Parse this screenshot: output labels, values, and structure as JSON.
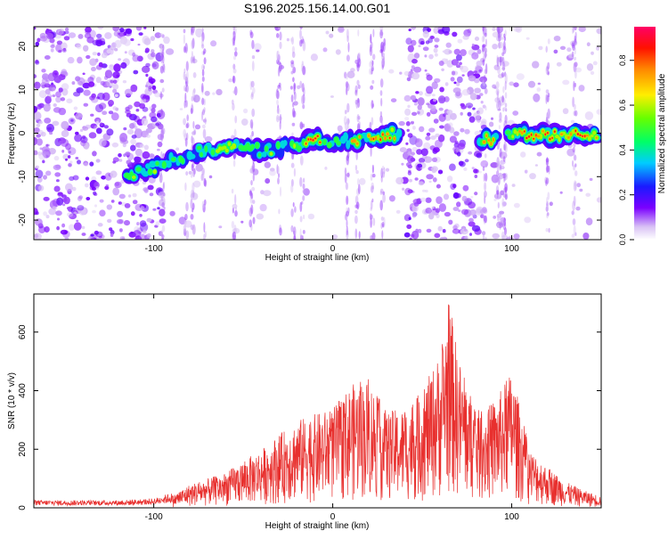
{
  "title": "S196.2025.156.14.00.G01",
  "colors": {
    "snr_line": "#e8302e",
    "axis": "#000000"
  },
  "chart_data": [
    {
      "type": "heatmap",
      "xlabel": "Height of straight line (km)",
      "ylabel": "Frequency (Hz)",
      "xlim": [
        -167,
        150
      ],
      "ylim": [
        -24.5,
        24.5
      ],
      "x_ticks": [
        -100,
        0,
        100
      ],
      "y_ticks": [
        -20,
        -10,
        0,
        10,
        20
      ],
      "colorbar": {
        "label": "Normalized spectral amplitude",
        "range": [
          0.0,
          0.95
        ],
        "ticks": [
          0.0,
          0.2,
          0.4,
          0.6,
          0.8
        ],
        "colormap": "rainbow"
      },
      "ridge": {
        "description_points_x": [
          -115,
          -100,
          -80,
          -60,
          -40,
          -20,
          -10,
          0,
          20,
          38
        ],
        "description_points_y": [
          -10,
          -8,
          -5,
          -3,
          -4,
          -3,
          -1,
          -2,
          -1,
          0
        ],
        "segments_x": [
          [
            -115,
            38
          ],
          [
            82,
            92
          ],
          [
            98,
            148
          ]
        ],
        "peak_frequency_after_gap": -0.5
      },
      "noise_regions_x": [
        [
          -167,
          -95
        ],
        [
          40,
          85
        ]
      ],
      "grid": false,
      "legend": "none"
    },
    {
      "type": "line",
      "xlabel": "Height of straight line (km)",
      "ylabel": "SNR (10 * v/v)",
      "xlim": [
        -167,
        150
      ],
      "ylim": [
        0,
        730
      ],
      "x_ticks": [
        -100,
        0,
        100
      ],
      "y_ticks": [
        0,
        200,
        400,
        600
      ],
      "envelope_x": [
        -167,
        -120,
        -100,
        -90,
        -80,
        -60,
        -40,
        -20,
        0,
        10,
        20,
        30,
        40,
        50,
        60,
        65,
        70,
        75,
        80,
        90,
        100,
        110,
        120,
        130,
        140,
        150
      ],
      "envelope_y": [
        20,
        20,
        25,
        40,
        80,
        120,
        200,
        300,
        340,
        420,
        440,
        330,
        340,
        400,
        530,
        720,
        520,
        430,
        330,
        360,
        470,
        200,
        140,
        90,
        60,
        40
      ],
      "grid": false,
      "legend": "none"
    }
  ]
}
